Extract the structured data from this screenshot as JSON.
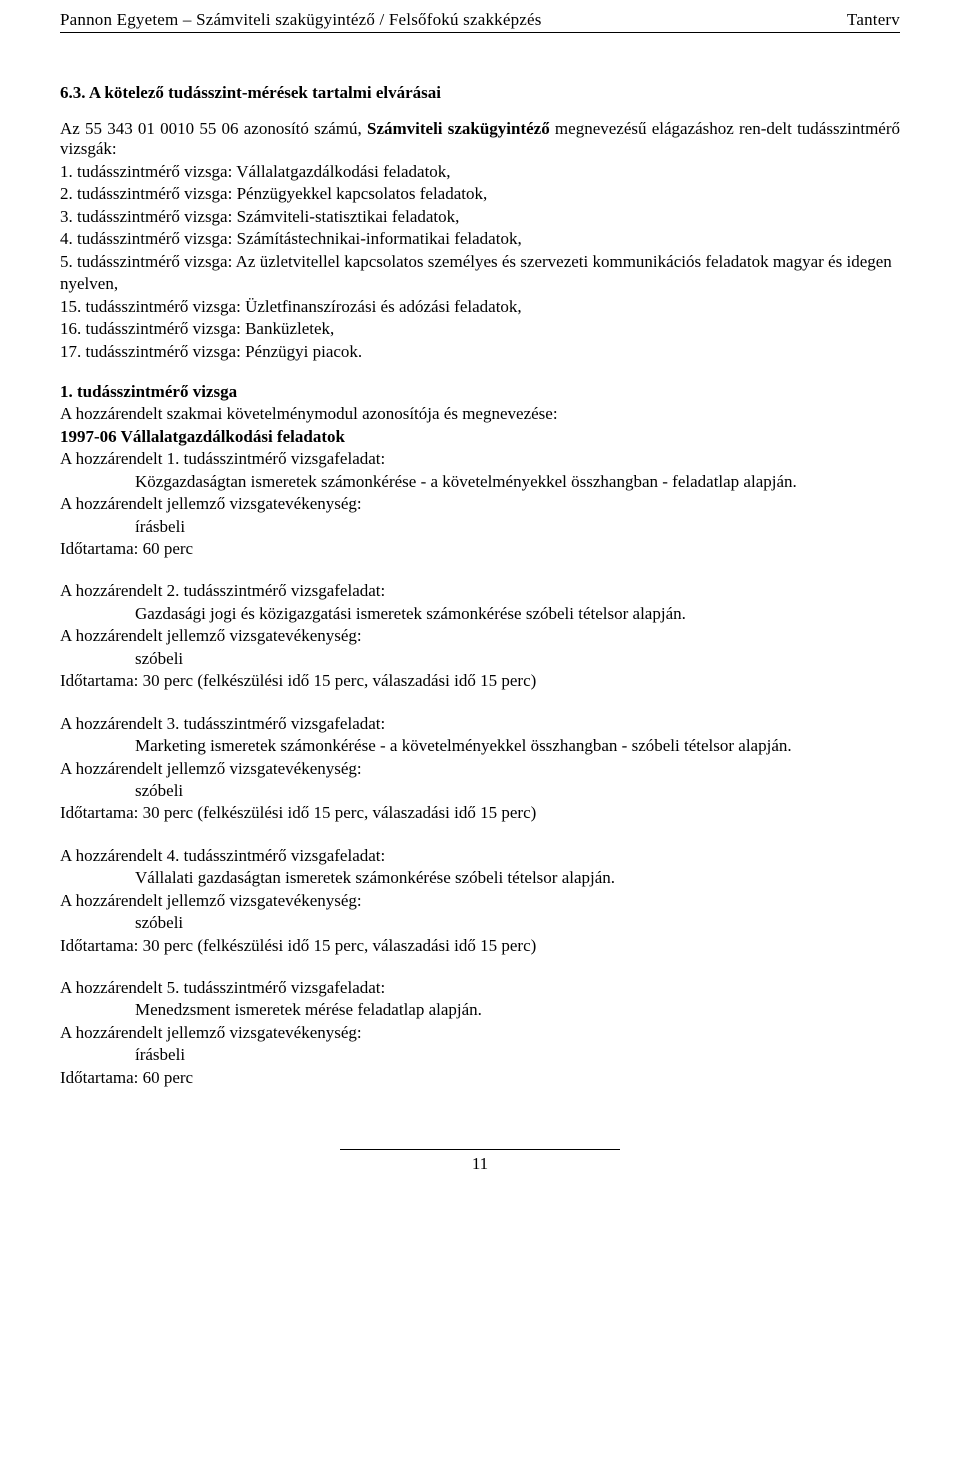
{
  "header": {
    "left": "Pannon Egyetem – Számviteli szakügyintéző / Felsőfokú szakképzés",
    "right": "Tanterv"
  },
  "section_number": "6.3.",
  "section_title": "A kötelező tudásszint-mérések tartalmi elvárásai",
  "intro_prefix": "Az 55 343 01 0010 55 06 azonosító számú, ",
  "intro_bold": "Számviteli szakügyintéző",
  "intro_suffix": " megnevezésű elágazáshoz ren-delt tudásszintmérő vizsgák:",
  "exam_list": [
    "1. tudásszintmérő vizsga: Vállalatgazdálkodási feladatok,",
    "2. tudásszintmérő vizsga: Pénzügyekkel kapcsolatos feladatok,",
    "3. tudásszintmérő vizsga: Számviteli-statisztikai feladatok,",
    "4. tudásszintmérő vizsga: Számítástechnikai-informatikai feladatok,",
    "5. tudásszintmérő vizsga: Az üzletvitellel kapcsolatos személyes és szervezeti kommunikációs feladatok magyar és idegen nyelven,",
    "15. tudásszintmérő vizsga: Üzletfinanszírozási és adózási feladatok,",
    "16. tudásszintmérő vizsga: Banküzletek,",
    "17. tudásszintmérő vizsga: Pénzügyi piacok."
  ],
  "v1": {
    "label": "1. tudásszintmérő vizsga",
    "module_intro": "A hozzárendelt szakmai követelménymodul azonosítója és megnevezése:",
    "module_code": "1997-06  Vállalatgazdálkodási feladatok",
    "task1_title": "A hozzárendelt 1. tudásszintmérő vizsgafeladat:",
    "task1_desc": "Közgazdaságtan ismeretek számonkérése - a követelményekkel összhangban - feladatlap alapján.",
    "task1_act_label": "A hozzárendelt jellemző vizsgatevékenység:",
    "task1_act": "írásbeli",
    "task1_dur": "Időtartama:  60 perc",
    "task2_title": "A hozzárendelt 2. tudásszintmérő vizsgafeladat:",
    "task2_desc": "Gazdasági jogi és közigazgatási ismeretek számonkérése szóbeli tételsor alapján.",
    "task2_act_label": "A hozzárendelt jellemző vizsgatevékenység:",
    "task2_act": "szóbeli",
    "task2_dur": "Időtartama:  30 perc (felkészülési idő 15 perc, válaszadási idő 15 perc)",
    "task3_title": "A hozzárendelt 3. tudásszintmérő vizsgafeladat:",
    "task3_desc": "Marketing ismeretek számonkérése - a követelményekkel összhangban - szóbeli tételsor alapján.",
    "task3_act_label": "A hozzárendelt jellemző vizsgatevékenység:",
    "task3_act": "szóbeli",
    "task3_dur": "Időtartama:  30 perc (felkészülési idő 15 perc, válaszadási idő 15 perc)",
    "task4_title": "A hozzárendelt 4. tudásszintmérő vizsgafeladat:",
    "task4_desc": "Vállalati gazdaságtan ismeretek számonkérése szóbeli tételsor alapján.",
    "task4_act_label": "A hozzárendelt jellemző vizsgatevékenység:",
    "task4_act": "szóbeli",
    "task4_dur": "Időtartama:  30 perc (felkészülési idő 15 perc, válaszadási idő 15 perc)",
    "task5_title": "A hozzárendelt 5. tudásszintmérő vizsgafeladat:",
    "task5_desc": "Menedzsment ismeretek mérése feladatlap alapján.",
    "task5_act_label": "A hozzárendelt jellemző vizsgatevékenység:",
    "task5_act": "írásbeli",
    "task5_dur": "Időtartama:  60 perc"
  },
  "page_number": "11"
}
